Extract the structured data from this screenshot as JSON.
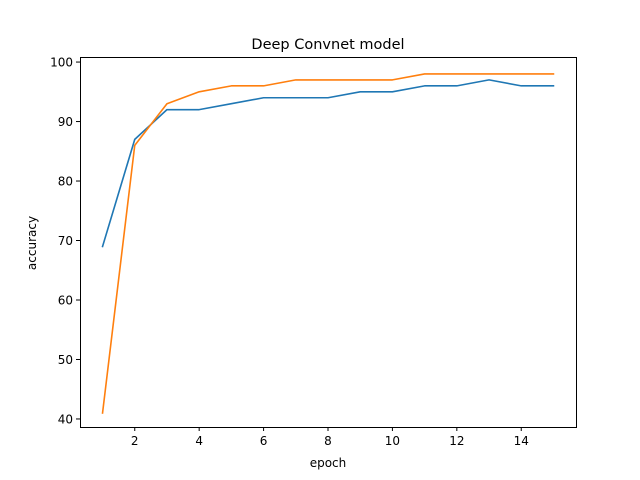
{
  "chart_data": {
    "type": "line",
    "title": "Deep Convnet model",
    "xlabel": "epoch",
    "ylabel": "accuracy",
    "x": [
      1,
      2,
      3,
      4,
      5,
      6,
      7,
      8,
      9,
      10,
      11,
      12,
      13,
      14,
      15
    ],
    "series": [
      {
        "color": "#1f77b4",
        "values": [
          69,
          87,
          92,
          92,
          93,
          94,
          94,
          94,
          95,
          95,
          96,
          96,
          97,
          96,
          96
        ]
      },
      {
        "color": "#ff7f0e",
        "values": [
          41,
          86,
          93,
          95,
          96,
          96,
          97,
          97,
          97,
          97,
          98,
          98,
          98,
          98,
          98
        ]
      }
    ],
    "xlim": [
      0.3,
      15.7
    ],
    "ylim": [
      38.65,
      100.85
    ],
    "xticks": [
      2,
      4,
      6,
      8,
      10,
      12,
      14
    ],
    "yticks": [
      40,
      50,
      60,
      70,
      80,
      90,
      100
    ],
    "grid": false,
    "legend": "none"
  }
}
